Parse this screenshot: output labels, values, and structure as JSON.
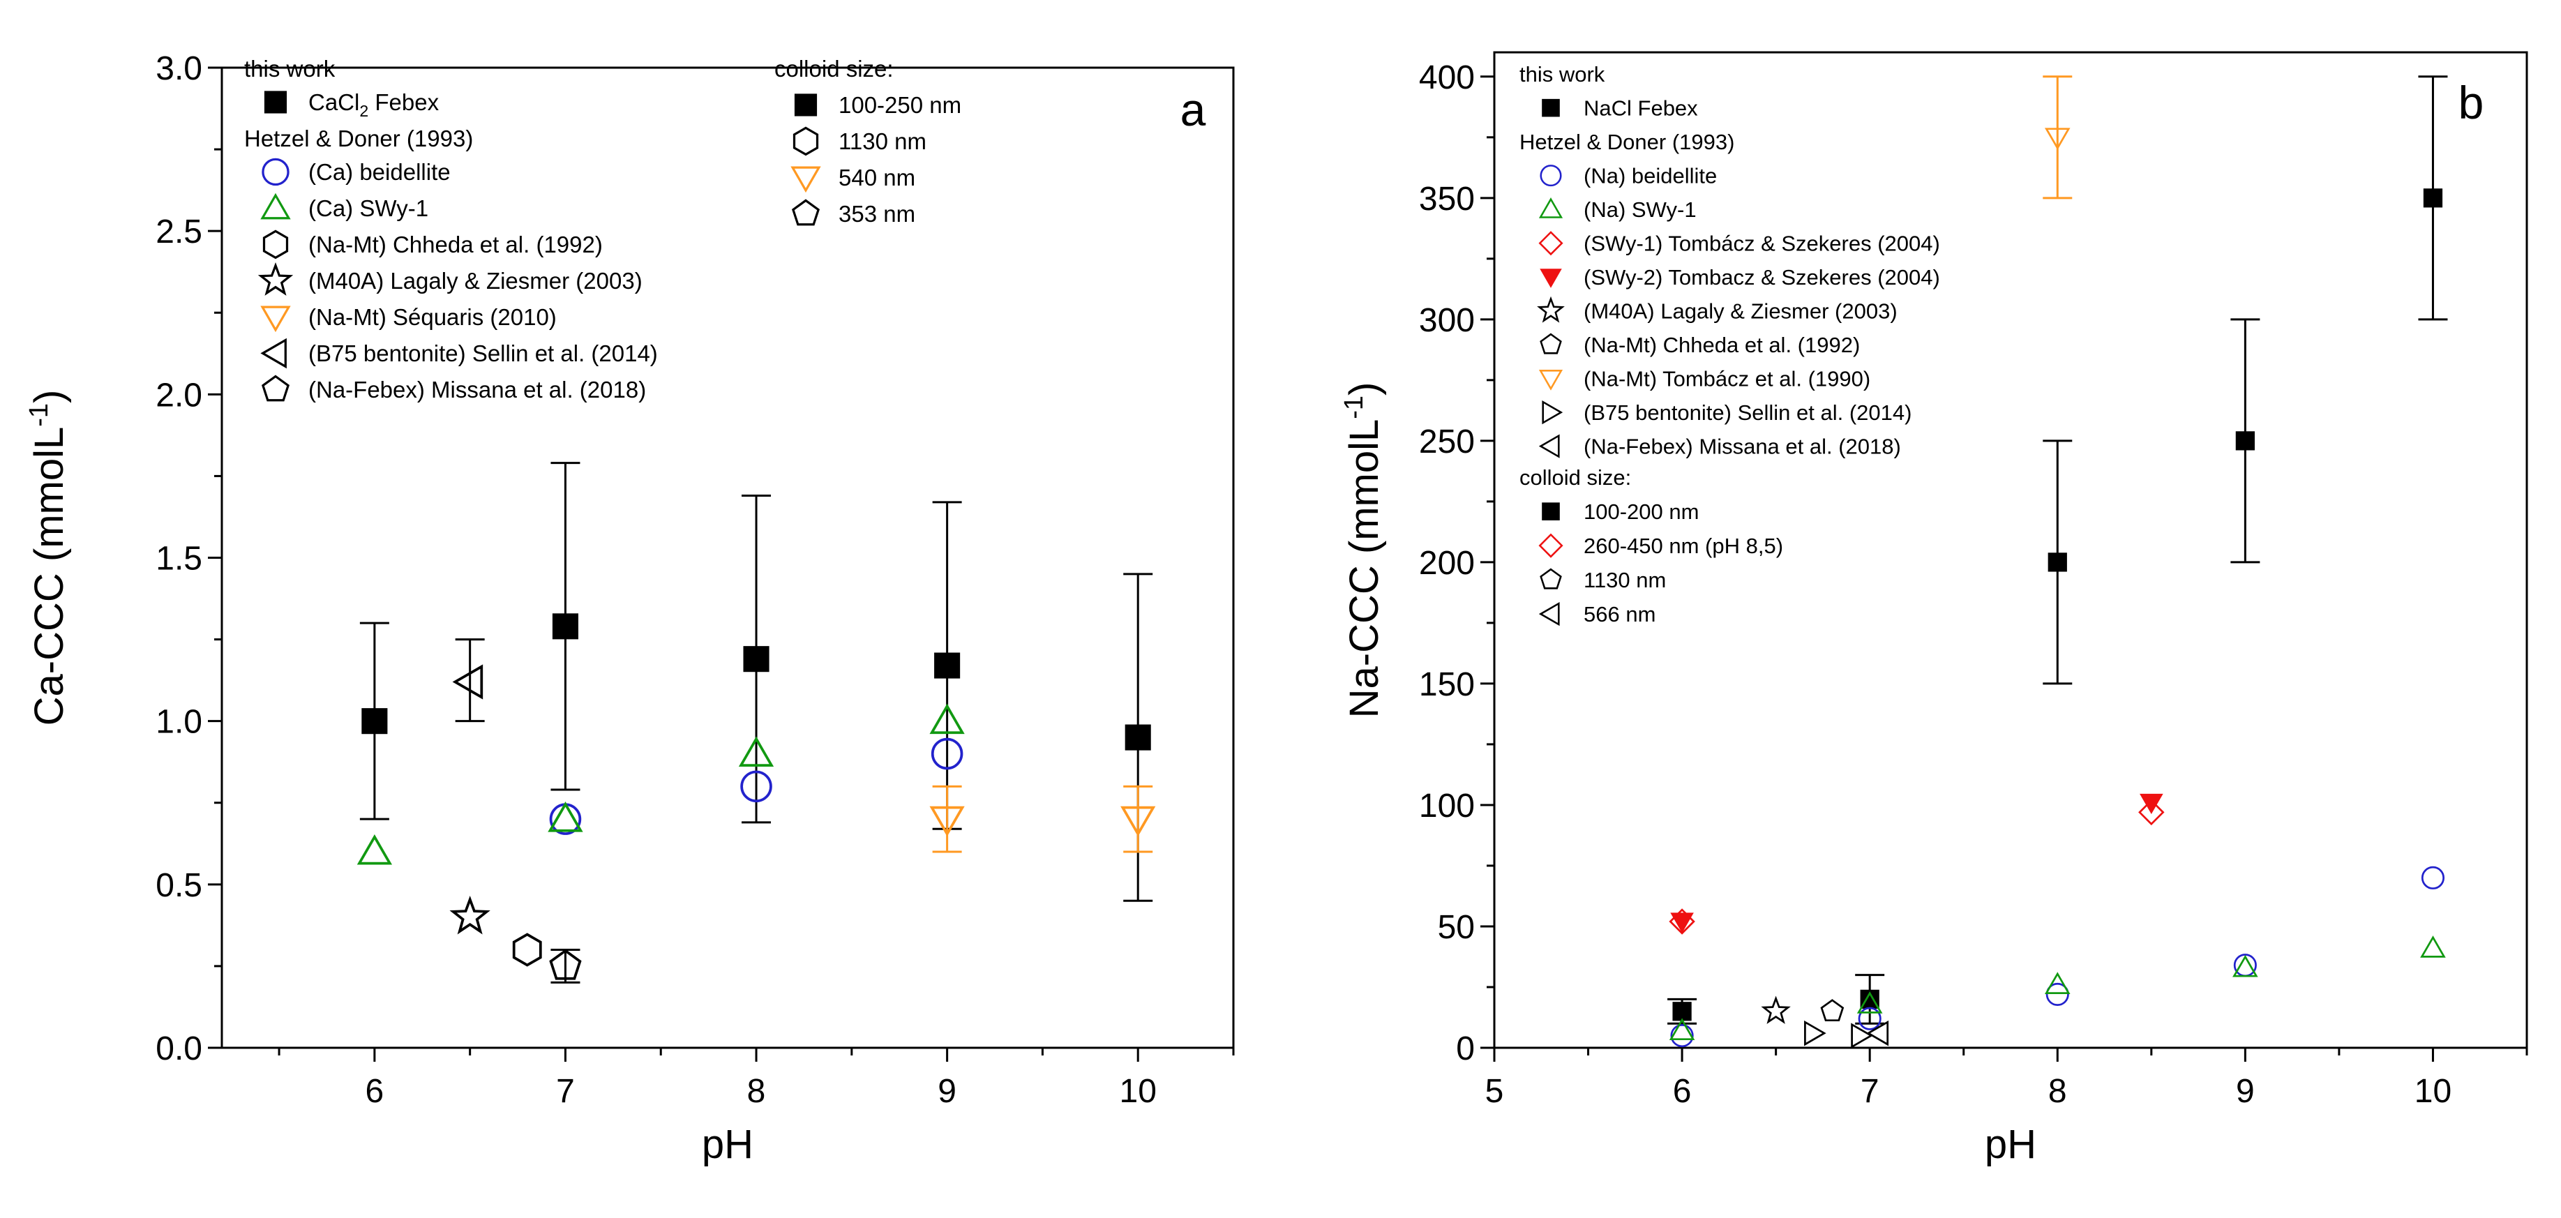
{
  "colors": {
    "black": "#000000",
    "blue": "#2222cc",
    "green": "#119911",
    "orange": "#ff9922",
    "red": "#ee1111"
  },
  "chart_data": [
    {
      "type": "scatter",
      "panel": "a",
      "xlabel": "pH",
      "ylabel": "Ca-CCC (mmolL",
      "ylabel_sup": "-1",
      "ylabel_close": ")",
      "xlim": [
        5.2,
        10.5
      ],
      "ylim": [
        0,
        3.0
      ],
      "xticks": [
        6,
        7,
        8,
        9,
        10
      ],
      "yticks": [
        0.0,
        0.5,
        1.0,
        1.5,
        2.0,
        2.5,
        3.0
      ],
      "ytick_labels": [
        "0.0",
        "0.5",
        "1.0",
        "1.5",
        "2.0",
        "2.5",
        "3.0"
      ],
      "legend": {
        "headers": [
          "this work",
          "Hetzel & Doner (1993)"
        ],
        "entries": [
          {
            "label": "CaCl",
            "sub": "2",
            "label_after": " Febex",
            "marker": "square-filled",
            "color": "#000000",
            "group": 0
          },
          {
            "label": "(Ca) beidellite",
            "marker": "circle",
            "color": "#2222cc",
            "group": 1
          },
          {
            "label": "(Ca) SWy-1",
            "marker": "triangle-up",
            "color": "#119911",
            "group": 1
          },
          {
            "label": "(Na-Mt) Chheda et al. (1992)",
            "marker": "hexagon",
            "color": "#000000",
            "group": 1
          },
          {
            "label": "(M40A) Lagaly & Ziesmer (2003)",
            "marker": "star",
            "color": "#000000",
            "group": 1
          },
          {
            "label": "(Na-Mt) Séquaris (2010)",
            "marker": "triangle-down",
            "color": "#ff9922",
            "group": 1
          },
          {
            "label": "(B75 bentonite) Sellin et al. (2014)",
            "marker": "triangle-left",
            "color": "#000000",
            "group": 1
          },
          {
            "label": "(Na-Febex) Missana et al. (2018)",
            "marker": "pentagon",
            "color": "#000000",
            "group": 1
          }
        ],
        "size_title": "colloid size:",
        "size_entries": [
          {
            "label": "100-250 nm",
            "marker": "square-filled",
            "color": "#000000"
          },
          {
            "label": "1130 nm",
            "marker": "hexagon",
            "color": "#000000"
          },
          {
            "label": "540 nm",
            "marker": "triangle-down",
            "color": "#ff9922"
          },
          {
            "label": "353 nm",
            "marker": "pentagon",
            "color": "#000000"
          }
        ]
      },
      "series": [
        {
          "label": "CaCl2 Febex",
          "marker": "square-filled",
          "color": "#000000",
          "points": [
            {
              "x": 6,
              "y": 1.0,
              "err_lo": 0.7,
              "err_hi": 1.3
            },
            {
              "x": 7,
              "y": 1.29,
              "err_lo": 0.79,
              "err_hi": 1.79
            },
            {
              "x": 8,
              "y": 1.19,
              "err_lo": 0.69,
              "err_hi": 1.69
            },
            {
              "x": 9,
              "y": 1.17,
              "err_lo": 0.67,
              "err_hi": 1.67
            },
            {
              "x": 10,
              "y": 0.95,
              "err_lo": 0.45,
              "err_hi": 1.45
            }
          ]
        },
        {
          "label": "(Ca) beidellite",
          "marker": "circle",
          "color": "#2222cc",
          "points": [
            {
              "x": 7,
              "y": 0.7
            },
            {
              "x": 8,
              "y": 0.8
            },
            {
              "x": 9,
              "y": 0.9
            }
          ]
        },
        {
          "label": "(Ca) SWy-1",
          "marker": "triangle-up",
          "color": "#119911",
          "points": [
            {
              "x": 6,
              "y": 0.6
            },
            {
              "x": 7,
              "y": 0.7
            },
            {
              "x": 8,
              "y": 0.9
            },
            {
              "x": 9,
              "y": 1.0
            }
          ]
        },
        {
          "label": "(Na-Mt) Chheda et al. (1992)",
          "marker": "hexagon",
          "color": "#000000",
          "points": [
            {
              "x": 6.8,
              "y": 0.3
            }
          ]
        },
        {
          "label": "(M40A) Lagaly & Ziesmer (2003)",
          "marker": "star",
          "color": "#000000",
          "points": [
            {
              "x": 6.5,
              "y": 0.4
            }
          ]
        },
        {
          "label": "(Na-Mt) Séquaris (2010)",
          "marker": "triangle-down",
          "color": "#ff9922",
          "points": [
            {
              "x": 9,
              "y": 0.7,
              "err_lo": 0.6,
              "err_hi": 0.8
            },
            {
              "x": 10,
              "y": 0.7,
              "err_lo": 0.6,
              "err_hi": 0.8
            }
          ]
        },
        {
          "label": "(B75 bentonite) Sellin et al. (2014)",
          "marker": "triangle-left",
          "color": "#000000",
          "points": [
            {
              "x": 6.5,
              "y": 1.12,
              "err_lo": 1.0,
              "err_hi": 1.25
            }
          ]
        },
        {
          "label": "(Na-Febex) Missana et al. (2018)",
          "marker": "pentagon",
          "color": "#000000",
          "points": [
            {
              "x": 7,
              "y": 0.25,
              "err_lo": 0.2,
              "err_hi": 0.3
            }
          ]
        }
      ]
    },
    {
      "type": "scatter",
      "panel": "b",
      "xlabel": "pH",
      "ylabel": "Na-CCC (mmolL",
      "ylabel_sup": "-1",
      "ylabel_close": ")",
      "xlim": [
        5,
        10.5
      ],
      "ylim": [
        0,
        410
      ],
      "xticks": [
        5,
        6,
        7,
        8,
        9,
        10
      ],
      "yticks": [
        0,
        50,
        100,
        150,
        200,
        250,
        300,
        350,
        400
      ],
      "ytick_labels": [
        "0",
        "50",
        "100",
        "150",
        "200",
        "250",
        "300",
        "350",
        "400"
      ],
      "legend": {
        "headers": [
          "this work",
          "Hetzel & Doner (1993)"
        ],
        "entries": [
          {
            "label": "NaCl Febex",
            "marker": "square-filled",
            "color": "#000000",
            "group": 0
          },
          {
            "label": "(Na) beidellite",
            "marker": "circle",
            "color": "#2222cc",
            "group": 1
          },
          {
            "label": "(Na) SWy-1",
            "marker": "triangle-up",
            "color": "#119911",
            "group": 1
          },
          {
            "label": "(SWy-1) Tombácz & Szekeres (2004)",
            "marker": "diamond",
            "color": "#ee1111",
            "group": 1
          },
          {
            "label": "(SWy-2) Tombacz & Szekeres (2004)",
            "marker": "triangle-down-filled",
            "color": "#ee1111",
            "group": 1
          },
          {
            "label": "(M40A) Lagaly & Ziesmer (2003)",
            "marker": "star",
            "color": "#000000",
            "group": 1
          },
          {
            "label": "(Na-Mt) Chheda et al. (1992)",
            "marker": "pentagon",
            "color": "#000000",
            "group": 1
          },
          {
            "label": "(Na-Mt) Tombácz et al. (1990)",
            "marker": "triangle-down",
            "color": "#ff9922",
            "group": 1
          },
          {
            "label": "(B75 bentonite) Sellin et al. (2014)",
            "marker": "triangle-right",
            "color": "#000000",
            "group": 1
          },
          {
            "label": "(Na-Febex) Missana et al. (2018)",
            "marker": "triangle-left",
            "color": "#000000",
            "group": 1
          }
        ],
        "size_title": "colloid size:",
        "size_entries": [
          {
            "label": "100-200 nm",
            "marker": "square-filled",
            "color": "#000000"
          },
          {
            "label": "260-450 nm (pH 8,5)",
            "marker": "diamond",
            "color": "#ee1111"
          },
          {
            "label": "1130 nm",
            "marker": "pentagon",
            "color": "#000000"
          },
          {
            "label": "566 nm",
            "marker": "triangle-left",
            "color": "#000000"
          }
        ]
      },
      "series": [
        {
          "label": "NaCl Febex",
          "marker": "square-filled",
          "color": "#000000",
          "points": [
            {
              "x": 6,
              "y": 15,
              "err_lo": 10,
              "err_hi": 20
            },
            {
              "x": 7,
              "y": 20,
              "err_lo": 10,
              "err_hi": 30
            },
            {
              "x": 8,
              "y": 200,
              "err_lo": 150,
              "err_hi": 250
            },
            {
              "x": 9,
              "y": 250,
              "err_lo": 200,
              "err_hi": 300
            },
            {
              "x": 10,
              "y": 350,
              "err_lo": 300,
              "err_hi": 400
            }
          ]
        },
        {
          "label": "(Na) beidellite",
          "marker": "circle",
          "color": "#2222cc",
          "points": [
            {
              "x": 6,
              "y": 5
            },
            {
              "x": 7,
              "y": 12
            },
            {
              "x": 8,
              "y": 22
            },
            {
              "x": 9,
              "y": 34
            },
            {
              "x": 10,
              "y": 70
            }
          ]
        },
        {
          "label": "(Na) SWy-1",
          "marker": "triangle-up",
          "color": "#119911",
          "points": [
            {
              "x": 6,
              "y": 7
            },
            {
              "x": 7,
              "y": 18
            },
            {
              "x": 8,
              "y": 26
            },
            {
              "x": 9,
              "y": 33
            },
            {
              "x": 10,
              "y": 41
            }
          ]
        },
        {
          "label": "(SWy-1) Tombácz & Szekeres (2004)",
          "marker": "diamond",
          "color": "#ee1111",
          "points": [
            {
              "x": 6,
              "y": 52
            },
            {
              "x": 8.5,
              "y": 97
            }
          ]
        },
        {
          "label": "(SWy-2) Tombacz & Szekeres (2004)",
          "marker": "triangle-down-filled",
          "color": "#ee1111",
          "points": [
            {
              "x": 6,
              "y": 52
            },
            {
              "x": 8.5,
              "y": 101
            }
          ]
        },
        {
          "label": "(M40A) Lagaly & Ziesmer (2003)",
          "marker": "star",
          "color": "#000000",
          "points": [
            {
              "x": 6.5,
              "y": 15
            }
          ]
        },
        {
          "label": "(Na-Mt) Chheda et al. (1992)",
          "marker": "pentagon",
          "color": "#000000",
          "points": [
            {
              "x": 6.8,
              "y": 15
            }
          ]
        },
        {
          "label": "(Na-Mt) Tombácz et al. (1990)",
          "marker": "triangle-down",
          "color": "#ff9922",
          "points": [
            {
              "x": 8,
              "y": 375,
              "err_lo": 350,
              "err_hi": 400
            }
          ]
        },
        {
          "label": "(B75 bentonite) Sellin et al. (2014)",
          "marker": "triangle-right",
          "color": "#000000",
          "points": [
            {
              "x": 6.7,
              "y": 6
            },
            {
              "x": 6.95,
              "y": 5
            }
          ]
        },
        {
          "label": "(Na-Febex) Missana et al. (2018)",
          "marker": "triangle-left",
          "color": "#000000",
          "points": [
            {
              "x": 7.05,
              "y": 6
            }
          ]
        }
      ]
    }
  ]
}
